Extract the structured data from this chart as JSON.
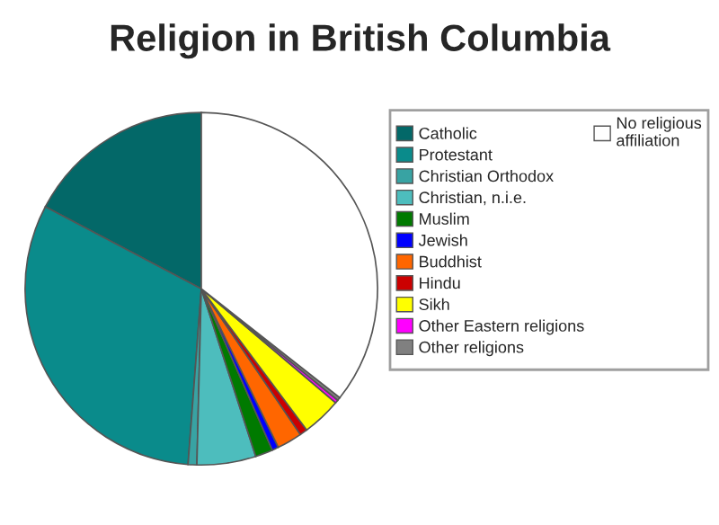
{
  "chart_data": {
    "type": "pie",
    "title": "Religion in British Columbia",
    "categories": [
      "Catholic",
      "Protestant",
      "Christian Orthodox",
      "Christian, n.i.e.",
      "Muslim",
      "Jewish",
      "Buddhist",
      "Hindu",
      "Sikh",
      "Other Eastern religions",
      "Other religions",
      "No religious affiliation"
    ],
    "values": [
      17.3,
      31.5,
      0.8,
      5.4,
      1.6,
      0.6,
      2.3,
      0.7,
      3.6,
      0.3,
      0.3,
      35.6
    ],
    "colors": [
      "#036868",
      "#0a8b8b",
      "#38a3a3",
      "#4dbdbd",
      "#007a00",
      "#0000ff",
      "#ff6600",
      "#cc0000",
      "#ffff00",
      "#ff00ff",
      "#808080",
      "#ffffff"
    ],
    "legend": "right"
  }
}
